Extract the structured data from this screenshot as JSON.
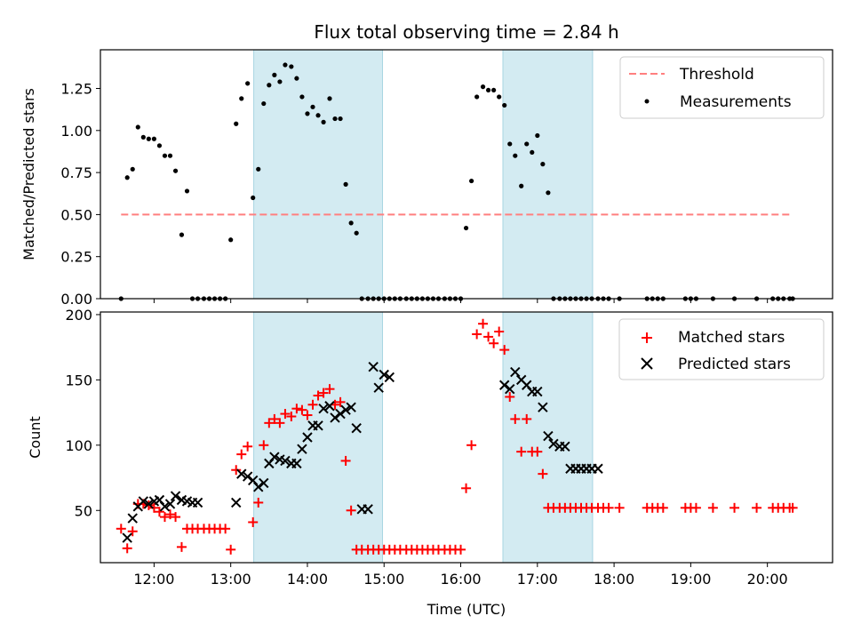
{
  "chart_data": {
    "type": "scatter",
    "title": "Flux total observing time = 2.84 h",
    "xlabel": "Time (UTC)",
    "x_unit": "hours_utc",
    "xlim": [
      11.3,
      20.85
    ],
    "x_ticks": [
      12,
      13,
      14,
      15,
      16,
      17,
      18,
      19,
      20
    ],
    "x_tick_labels": [
      "12:00",
      "13:00",
      "14:00",
      "15:00",
      "16:00",
      "17:00",
      "18:00",
      "19:00",
      "20:00"
    ],
    "observing_windows": [
      [
        13.3,
        14.98
      ],
      [
        16.55,
        17.72
      ]
    ],
    "window_color": "#d3ebf2",
    "top": {
      "ylabel": "Matched/Predicted stars",
      "ylim": [
        0,
        1.48
      ],
      "y_ticks": [
        0,
        0.25,
        0.5,
        0.75,
        1.0,
        1.25
      ],
      "y_tick_labels": [
        "0.00",
        "0.25",
        "0.50",
        "0.75",
        "1.00",
        "1.25"
      ],
      "threshold": {
        "name": "Threshold",
        "value": 0.5,
        "x_range": [
          11.57,
          20.32
        ],
        "color": "#ff7f7f"
      },
      "measurements": {
        "name": "Measurements",
        "color": "#000000",
        "x": [
          11.57,
          11.65,
          11.72,
          11.79,
          11.86,
          11.93,
          12.0,
          12.07,
          12.14,
          12.21,
          12.28,
          12.36,
          12.43,
          12.5,
          12.57,
          12.65,
          12.72,
          12.79,
          12.86,
          12.93,
          13.0,
          13.07,
          13.14,
          13.22,
          13.29,
          13.36,
          13.43,
          13.5,
          13.57,
          13.64,
          13.71,
          13.79,
          13.86,
          13.93,
          14.0,
          14.07,
          14.14,
          14.21,
          14.29,
          14.36,
          14.43,
          14.5,
          14.57,
          14.64,
          14.71,
          14.79,
          14.86,
          14.93,
          15.0,
          15.07,
          15.14,
          15.21,
          15.29,
          15.36,
          15.43,
          15.5,
          15.57,
          15.64,
          15.71,
          15.79,
          15.86,
          15.93,
          16.0,
          16.07,
          16.14,
          16.21,
          16.29,
          16.36,
          16.43,
          16.5,
          16.57,
          16.64,
          16.71,
          16.79,
          16.86,
          16.93,
          17.0,
          17.07,
          17.14,
          17.21,
          17.29,
          17.36,
          17.43,
          17.5,
          17.57,
          17.64,
          17.71,
          17.79,
          17.86,
          17.93,
          18.07,
          18.43,
          18.5,
          18.57,
          18.64,
          18.93,
          19.0,
          19.07,
          19.29,
          19.57,
          19.86,
          20.07,
          20.14,
          20.21,
          20.29,
          20.33
        ],
        "y": [
          0.0,
          0.72,
          0.77,
          1.02,
          0.96,
          0.95,
          0.95,
          0.91,
          0.85,
          0.85,
          0.76,
          0.38,
          0.64,
          0.0,
          0.0,
          0.0,
          0.0,
          0.0,
          0.0,
          0.0,
          0.35,
          1.04,
          1.19,
          1.28,
          0.6,
          0.77,
          1.16,
          1.27,
          1.33,
          1.29,
          1.39,
          1.38,
          1.31,
          1.2,
          1.1,
          1.14,
          1.09,
          1.05,
          1.19,
          1.07,
          1.07,
          0.68,
          0.45,
          0.39,
          0.0,
          0.0,
          0.0,
          0.0,
          0.0,
          0.0,
          0.0,
          0.0,
          0.0,
          0.0,
          0.0,
          0.0,
          0.0,
          0.0,
          0.0,
          0.0,
          0.0,
          0.0,
          0.0,
          0.42,
          0.7,
          1.2,
          1.26,
          1.24,
          1.24,
          1.2,
          1.15,
          0.92,
          0.85,
          0.67,
          0.92,
          0.87,
          0.97,
          0.8,
          0.63,
          0.0,
          0.0,
          0.0,
          0.0,
          0.0,
          0.0,
          0.0,
          0.0,
          0.0,
          0.0,
          0.0,
          0.0,
          0.0,
          0.0,
          0.0,
          0.0,
          0.0,
          0.0,
          0.0,
          0.0,
          0.0,
          0.0,
          0.0,
          0.0,
          0.0,
          0.0,
          0.0
        ]
      }
    },
    "bottom": {
      "ylabel": "Count",
      "ylim": [
        10,
        202
      ],
      "y_ticks": [
        50,
        100,
        150,
        200
      ],
      "y_tick_labels": [
        "50",
        "100",
        "150",
        "200"
      ],
      "matched": {
        "name": "Matched stars",
        "color": "#ff0000",
        "x": [
          11.57,
          11.65,
          11.72,
          11.79,
          11.86,
          11.93,
          12.0,
          12.07,
          12.14,
          12.21,
          12.28,
          12.36,
          12.43,
          12.5,
          12.57,
          12.65,
          12.72,
          12.79,
          12.86,
          12.93,
          13.0,
          13.07,
          13.14,
          13.22,
          13.29,
          13.36,
          13.43,
          13.5,
          13.57,
          13.64,
          13.71,
          13.79,
          13.86,
          13.93,
          14.0,
          14.07,
          14.14,
          14.21,
          14.29,
          14.36,
          14.43,
          14.5,
          14.57,
          14.64,
          14.71,
          14.79,
          14.86,
          14.93,
          15.0,
          15.07,
          15.14,
          15.21,
          15.29,
          15.36,
          15.43,
          15.5,
          15.57,
          15.64,
          15.71,
          15.79,
          15.86,
          15.93,
          16.0,
          16.07,
          16.14,
          16.21,
          16.29,
          16.36,
          16.43,
          16.5,
          16.57,
          16.64,
          16.71,
          16.79,
          16.86,
          16.93,
          17.0,
          17.07,
          17.14,
          17.21,
          17.29,
          17.36,
          17.43,
          17.5,
          17.57,
          17.64,
          17.71,
          17.79,
          17.86,
          17.93,
          18.07,
          18.43,
          18.5,
          18.57,
          18.64,
          18.93,
          19.0,
          19.07,
          19.29,
          19.57,
          19.86,
          20.07,
          20.14,
          20.21,
          20.29,
          20.33
        ],
        "y": [
          36,
          21,
          34,
          55,
          55,
          54,
          52,
          49,
          45,
          47,
          45,
          22,
          36,
          36,
          36,
          36,
          36,
          36,
          36,
          36,
          20,
          81,
          93,
          99,
          41,
          56,
          100,
          117,
          120,
          117,
          124,
          122,
          128,
          127,
          123,
          131,
          138,
          140,
          143,
          131,
          133,
          88,
          50,
          20,
          20,
          20,
          20,
          20,
          20,
          20,
          20,
          20,
          20,
          20,
          20,
          20,
          20,
          20,
          20,
          20,
          20,
          20,
          20,
          67,
          100,
          185,
          193,
          183,
          178,
          187,
          173,
          137,
          120,
          95,
          120,
          95,
          95,
          78,
          52,
          52,
          52,
          52,
          52,
          52,
          52,
          52,
          52,
          52,
          52,
          52,
          52,
          52,
          52,
          52,
          52,
          52,
          52,
          52,
          52,
          52,
          52,
          52,
          52,
          52,
          52,
          52
        ]
      },
      "predicted": {
        "name": "Predicted stars",
        "color": "#000000",
        "x": [
          11.65,
          11.72,
          11.79,
          11.86,
          11.93,
          12.0,
          12.07,
          12.14,
          12.21,
          12.28,
          12.36,
          12.43,
          12.5,
          12.57,
          13.07,
          13.14,
          13.22,
          13.29,
          13.36,
          13.43,
          13.5,
          13.57,
          13.64,
          13.71,
          13.79,
          13.86,
          13.93,
          14.0,
          14.07,
          14.14,
          14.21,
          14.29,
          14.36,
          14.43,
          14.5,
          14.57,
          14.64,
          14.71,
          14.79,
          14.86,
          14.93,
          15.0,
          15.07,
          16.57,
          16.64,
          16.71,
          16.79,
          16.86,
          16.93,
          17.0,
          17.07,
          17.14,
          17.21,
          17.29,
          17.36,
          17.43,
          17.5,
          17.57,
          17.64,
          17.71,
          17.79
        ],
        "y": [
          29,
          44,
          53,
          57,
          55,
          57,
          58,
          53,
          55,
          61,
          58,
          57,
          56,
          56,
          56,
          78,
          76,
          73,
          68,
          71,
          86,
          91,
          89,
          88,
          86,
          86,
          97,
          106,
          115,
          115,
          128,
          130,
          121,
          124,
          127,
          129,
          113,
          51,
          51,
          160,
          144,
          154,
          152,
          146,
          143,
          156,
          150,
          146,
          141,
          141,
          129,
          107,
          101,
          99,
          99,
          82,
          82,
          82,
          82,
          82,
          82
        ]
      }
    }
  }
}
